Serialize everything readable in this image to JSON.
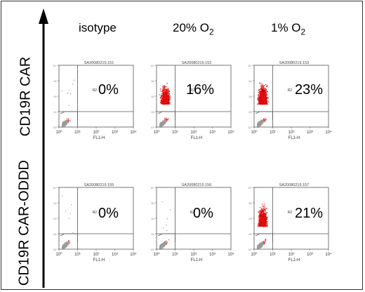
{
  "y_axis_arrow": "up",
  "row_labels": [
    "CD19R CAR",
    "CD19R CAR-ODDD"
  ],
  "column_labels": [
    "isotype",
    "20% O",
    "1% O"
  ],
  "column_label_subscripts": [
    "",
    "2",
    "2"
  ],
  "gate_label": "R2",
  "x_axis_label": "FL1-H",
  "x_tick_labels": [
    "10⁰",
    "10¹",
    "10²",
    "10³",
    "10⁴"
  ],
  "y_tick_labels": [
    "10⁰",
    "10¹",
    "10²",
    "10³",
    "10⁴"
  ],
  "colors": {
    "dots": "#e81010",
    "dots_dark": "#b00000",
    "density": "#9a9a9a",
    "frame": "#333333"
  },
  "chart_data": {
    "type": "scatter",
    "subtype": "flow-cytometry dot plot grid",
    "xlabel": "FL1-H",
    "x_scale": "log",
    "xlim": [
      1,
      10000
    ],
    "y_scale": "log",
    "ylim": [
      1,
      10000
    ],
    "rows": [
      "CD19R CAR",
      "CD19R CAR-ODDD"
    ],
    "columns": [
      "isotype",
      "20% O2",
      "1% O2"
    ],
    "panels": [
      {
        "sample_id": "SA20080219.151",
        "row": "CD19R CAR",
        "column": "isotype",
        "gate": "R2",
        "percent": "0%",
        "value": 0
      },
      {
        "sample_id": "SA20080219.152",
        "row": "CD19R CAR",
        "column": "20% O2",
        "gate": "R2",
        "percent": "16%",
        "value": 16
      },
      {
        "sample_id": "SA20080219.153",
        "row": "CD19R CAR",
        "column": "1% O2",
        "gate": "R2",
        "percent": "23%",
        "value": 23
      },
      {
        "sample_id": "SA20080219.155",
        "row": "CD19R CAR-ODDD",
        "column": "isotype",
        "gate": "R2",
        "percent": "0%",
        "value": 0
      },
      {
        "sample_id": "SA20080219.156",
        "row": "CD19R CAR-ODDD",
        "column": "20% O2",
        "gate": "R2",
        "percent": "0%",
        "value": 0
      },
      {
        "sample_id": "SA20080219.157",
        "row": "CD19R CAR-ODDD",
        "column": "1% O2",
        "gate": "R2",
        "percent": "21%",
        "value": 21
      }
    ]
  }
}
